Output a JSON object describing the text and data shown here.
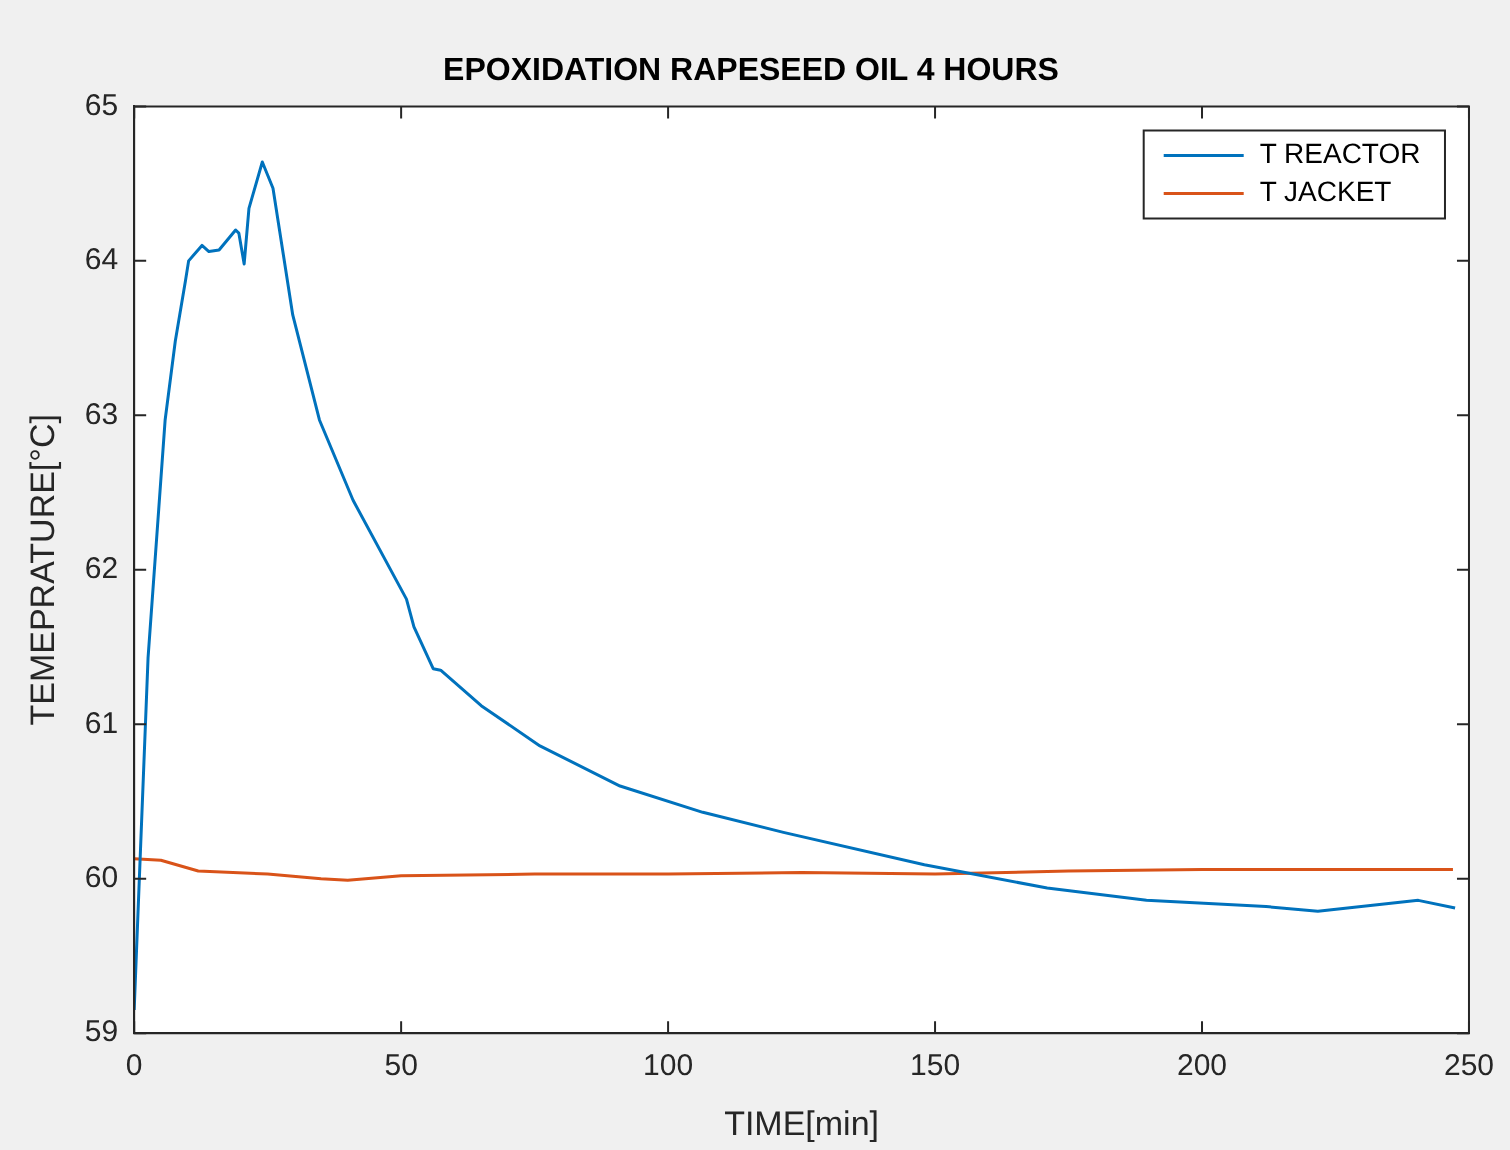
{
  "chart_data": {
    "type": "line",
    "title": "EPOXIDATION RAPESEED OIL 4 HOURS",
    "xlabel": "TIME[min]",
    "ylabel": "TEMEPRATURE[°C]",
    "xlim": [
      0,
      250
    ],
    "xticks": [
      0,
      50,
      100,
      150,
      200,
      250
    ],
    "ylim": [
      59,
      65
    ],
    "yticks": [
      59,
      60,
      61,
      62,
      63,
      64,
      65
    ],
    "grid": false,
    "legend": "top right",
    "marker": "none",
    "line_style": "solid",
    "series": [
      {
        "name": "T REACTOR",
        "color": "#0072bd",
        "x": [
          0,
          2.6,
          5.8,
          7.7,
          9.6,
          10.2,
          12.7,
          14,
          15.9,
          19,
          19.6,
          20.6,
          21.5,
          24,
          26,
          29.7,
          34.7,
          41,
          51,
          52.4,
          56,
          57.4,
          65,
          76,
          91,
          106.5,
          121.6,
          148,
          171,
          189.6,
          212,
          221.7,
          240.5,
          247.4
        ],
        "values": [
          59.15,
          61.43,
          62.97,
          63.48,
          63.87,
          64.0,
          64.1,
          64.06,
          64.07,
          64.2,
          64.18,
          63.98,
          64.34,
          64.64,
          64.47,
          63.65,
          62.97,
          62.45,
          61.81,
          61.63,
          61.36,
          61.35,
          61.12,
          60.86,
          60.6,
          60.43,
          60.3,
          60.09,
          59.94,
          59.86,
          59.82,
          59.79,
          59.86,
          59.81
        ]
      },
      {
        "name": "T JACKET",
        "color": "#d95319",
        "x": [
          0,
          5,
          12,
          25,
          35,
          40,
          50,
          75,
          100,
          125,
          150,
          175,
          200,
          222,
          242,
          247
        ],
        "values": [
          60.13,
          60.12,
          60.05,
          60.03,
          60.0,
          59.99,
          60.02,
          60.03,
          60.03,
          60.04,
          60.03,
          60.05,
          60.06,
          60.06,
          60.06,
          60.06
        ]
      }
    ]
  }
}
